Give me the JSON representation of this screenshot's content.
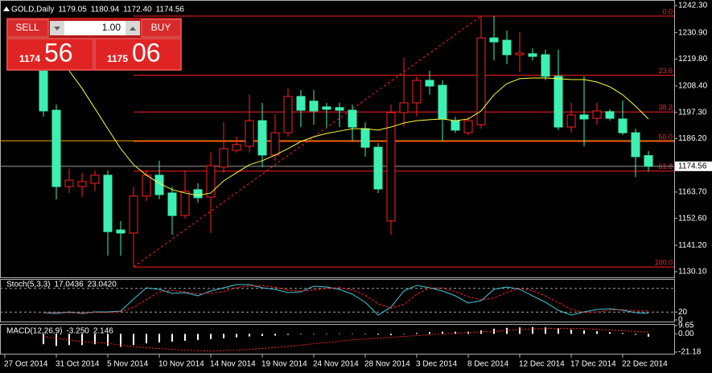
{
  "trade_panel": {
    "sell": "SELL",
    "buy": "BUY",
    "lot": "1.00",
    "bid_small": "1174",
    "bid_big": "56",
    "ask_small": "1175",
    "ask_big": "06"
  },
  "chart_data": [
    {
      "type": "candlestick",
      "title": "GOLD,Daily",
      "header_values": [
        1179.05,
        1180.94,
        {
          "value": 1172.4,
          "label": "1172.40"
        },
        1174.56
      ],
      "categories": [
        "27 Oct 2014",
        null,
        null,
        null,
        "31 Oct 2014",
        null,
        null,
        null,
        "5 Nov 2014",
        null,
        null,
        null,
        "10 Nov 2014",
        null,
        null,
        null,
        "14 Nov 2014",
        null,
        null,
        null,
        "19 Nov 2014",
        null,
        null,
        null,
        "24 Nov 2014",
        null,
        null,
        null,
        "28 Nov 2014",
        null,
        null,
        null,
        "3 Dec 2014",
        null,
        null,
        null,
        "8 Dec 2014",
        null,
        null,
        null,
        "12 Dec 2014",
        null,
        null,
        null,
        "17 Dec 2014",
        null,
        null,
        null,
        "22 Dec 2014",
        null,
        null
      ],
      "open": [
        null,
        null,
        null,
        1217.6,
        1198.2,
        1166.0,
        1166.0,
        1167.4,
        1170.8,
        1147.7,
        1146.4,
        1162.0,
        1170.8,
        1163.3,
        1153.8,
        1164.7,
        1161.6,
        1174.2,
        1181.3,
        1183.0,
        1193.8,
        1179.3,
        1188.7,
        1204.0,
        1202.0,
        1199.6,
        1199.3,
        1198.2,
        1190.4,
        1182.6,
        1151.5,
        1197.2,
        1201.3,
        1210.8,
        1208.7,
        1193.8,
        1188.7,
        1192.1,
        1228.7,
        1227.7,
        1221.6,
        1222.0,
        1221.6,
        1212.5,
        1191.1,
        1196.2,
        1194.8,
        1197.6,
        1194.5,
        1188.7,
        1179.05
      ],
      "high": [
        null,
        null,
        null,
        1220.9,
        1200.6,
        1173.5,
        1171.8,
        1172.8,
        1172.8,
        1151.5,
        1166.0,
        1172.8,
        1176.9,
        1166.0,
        1172.8,
        1167.4,
        1180.3,
        1193.2,
        1187.0,
        1204.7,
        1201.3,
        1196.5,
        1207.4,
        1206.7,
        1206.7,
        1201.3,
        1201.3,
        1200.6,
        1193.2,
        1184.3,
        1200.6,
        1220.3,
        1212.5,
        1214.8,
        1210.8,
        1195.5,
        1195.5,
        1237.9,
        1237.9,
        1231.8,
        1231.1,
        1224.3,
        1223.7,
        1223.7,
        1201.3,
        1212.5,
        1201.3,
        1198.6,
        1202.3,
        1190.4,
        1180.94
      ],
      "low": [
        null,
        null,
        null,
        1195.5,
        1160.6,
        1163.3,
        1161.6,
        1164.0,
        1136.9,
        1136.9,
        1132.1,
        1159.9,
        1160.6,
        1145.7,
        1152.5,
        1159.3,
        1146.4,
        1171.8,
        1180.3,
        1180.3,
        1174.2,
        1176.9,
        1187.0,
        1191.1,
        1192.1,
        1191.1,
        1191.1,
        1185.4,
        1178.6,
        1163.3,
        1145.7,
        1191.1,
        1195.5,
        1204.7,
        1185.4,
        1188.7,
        1187.7,
        1190.4,
        1219.2,
        1217.6,
        1214.2,
        1219.2,
        1210.8,
        1189.8,
        1188.7,
        1183.0,
        1192.1,
        1193.8,
        1187.7,
        1170.1,
        1172.4
      ],
      "close": [
        null,
        null,
        null,
        1197.9,
        1166.0,
        1168.7,
        1168.1,
        1170.8,
        1147.0,
        1146.4,
        1162.0,
        1170.8,
        1162.6,
        1153.8,
        1164.0,
        1161.3,
        1174.8,
        1182.0,
        1183.7,
        1193.8,
        1179.3,
        1188.7,
        1204.0,
        1198.2,
        1197.9,
        1198.6,
        1198.2,
        1191.1,
        1182.6,
        1165.0,
        1197.2,
        1201.3,
        1210.8,
        1208.4,
        1194.5,
        1189.8,
        1193.8,
        1228.7,
        1227.0,
        1221.6,
        1222.3,
        1220.9,
        1212.5,
        1191.1,
        1196.2,
        1194.5,
        1197.9,
        1194.8,
        1188.7,
        1178.6,
        1174.56
      ],
      "up_color": "#ff2020",
      "down_color": "#3cf0b4",
      "ma": {
        "color": "#ffff40",
        "values": [
          null,
          null,
          null,
          null,
          null,
          1214.8,
          1207.4,
          1198.9,
          1190.4,
          1182.0,
          1175.2,
          1170.8,
          1167.4,
          1164.7,
          1163.3,
          1162.3,
          1163.3,
          1168.4,
          1171.8,
          1175.2,
          1176.9,
          1179.3,
          1182.0,
          1185.0,
          1187.0,
          1188.4,
          1189.4,
          1190.4,
          1190.4,
          1189.8,
          1191.1,
          1192.8,
          1193.8,
          1194.2,
          1194.5,
          1193.8,
          1194.5,
          1197.9,
          1204.7,
          1209.4,
          1211.5,
          1211.8,
          1211.8,
          1211.5,
          1211.1,
          1211.1,
          1210.1,
          1208.1,
          1204.7,
          1199.9,
          1194.5
        ]
      },
      "fibo": {
        "high": 1237.9,
        "low": 1132.1,
        "color": "#ff2020",
        "levels": [
          {
            "value": 0,
            "label": "0.0"
          },
          23.6,
          38.2,
          {
            "value": 50,
            "label": "50.0"
          },
          61.8,
          {
            "value": 100,
            "label": "100.0"
          }
        ]
      },
      "horizontal_line": {
        "value": 1185.3,
        "color": "#ffa500"
      },
      "bid": 1174.56,
      "ylim": [
        1130.1,
        1242.3
      ],
      "yticks": [
        {
          "value": 1242.3,
          "label": "1242.30"
        },
        {
          "value": 1230.9,
          "label": "1230.90"
        },
        {
          "value": 1219.8,
          "label": "1219.80"
        },
        {
          "value": 1208.4,
          "label": "1208.40"
        },
        {
          "value": 1197.3,
          "label": "1197.30"
        },
        {
          "value": 1186.2,
          "label": "1186.20"
        },
        {
          "value": 1163.7,
          "label": "1163.70"
        },
        {
          "value": 1152.6,
          "label": "1152.60"
        },
        {
          "value": 1141.2,
          "label": "1141.20"
        },
        {
          "value": 1130.1,
          "label": "1130.10"
        }
      ]
    },
    {
      "type": "line",
      "title": "Stoch(5,3,3)",
      "header_values": [
        17.0436,
        {
          "value": 23.042,
          "label": "23.0420"
        }
      ],
      "series": [
        {
          "color": "#40c8d8",
          "dash": false,
          "values": [
            null,
            null,
            null,
            18.4,
            16.3,
            20.4,
            16.3,
            20.4,
            20.4,
            22.4,
            53.1,
            81.6,
            77.6,
            67.3,
            69.4,
            61.2,
            73.5,
            81.6,
            89.8,
            89.8,
            81.6,
            77.6,
            69.4,
            71.4,
            85.7,
            83.7,
            77.6,
            65.3,
            44.9,
            12.2,
            32.7,
            73.5,
            87.8,
            81.6,
            73.5,
            61.2,
            42.9,
            49.0,
            77.6,
            83.7,
            77.6,
            61.2,
            44.9,
            24.5,
            12.2,
            20.4,
            26.5,
            28.6,
            24.5,
            18.4,
            17.0436
          ]
        },
        {
          "color": "#ff2020",
          "dash": true,
          "values": [
            null,
            null,
            null,
            18,
            19,
            18,
            18,
            19,
            19,
            21,
            32,
            52,
            71,
            75,
            71,
            66,
            68,
            72,
            82,
            87,
            87,
            83,
            76,
            73,
            76,
            80,
            82,
            76,
            63,
            41,
            30,
            39,
            65,
            81,
            81,
            72,
            59,
            51,
            56,
            70,
            80,
            74,
            61,
            44,
            27,
            19,
            20,
            25,
            26,
            23,
            23.042
          ]
        }
      ],
      "levels": [
        20,
        80
      ],
      "ylim": [
        0,
        100
      ],
      "yticks": [
        0,
        20
      ]
    },
    {
      "type": "macd",
      "title": "MACD(12,26,9)",
      "header_values": [
        {
          "value": -3.25,
          "label": "-3.250"
        },
        2.146
      ],
      "histogram": {
        "color": "#ffffff",
        "values": [
          null,
          null,
          null,
          -12,
          -14,
          -13,
          -13,
          -12,
          -14,
          -15,
          -13,
          -11,
          -10,
          -9,
          -8,
          -7,
          -6,
          -5,
          -4,
          -3,
          -2.5,
          -2,
          -1,
          -0.5,
          0,
          0.3,
          0.5,
          0.4,
          0,
          -1,
          -1.5,
          -0.5,
          1,
          2,
          2.5,
          2.5,
          2.5,
          4,
          6,
          7,
          7.5,
          7.8,
          7.5,
          6.5,
          5,
          4,
          3,
          2,
          1,
          -1,
          -3.25
        ]
      },
      "signal": {
        "color": "#ff2020",
        "values": [
          null,
          null,
          null,
          -3,
          -5,
          -7,
          -9,
          -10,
          -11,
          -13,
          -15,
          -16,
          -17,
          -18,
          -19,
          -19.5,
          -20,
          -19.5,
          -19,
          -18,
          -17,
          -16,
          -14.5,
          -13,
          -11.5,
          -10,
          -8.5,
          -7,
          -6,
          -5,
          -4,
          -3,
          -2,
          -1,
          0,
          0.8,
          1.5,
          2.2,
          3,
          4,
          5,
          5.8,
          6.3,
          6.5,
          6.4,
          6,
          5.3,
          4.5,
          3.6,
          2.8,
          2.146
        ]
      },
      "ylim": [
        -21.18,
        9.65
      ],
      "yticks": [
        9.65,
        {
          "value": 0,
          "label": "0.00"
        },
        -21.18
      ]
    }
  ]
}
